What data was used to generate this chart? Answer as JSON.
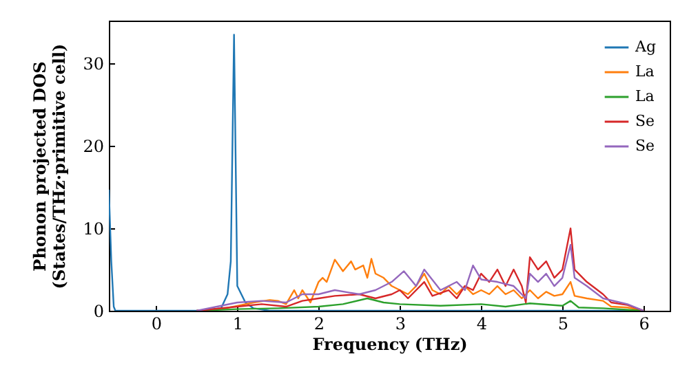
{
  "chart_data": {
    "type": "line",
    "xlabel": "Frequency (THz)",
    "ylabel": "Phonon projected DOS\n(States/THz·primitive cell)",
    "xlim": [
      -0.58,
      6.32
    ],
    "ylim": [
      0,
      35.2
    ],
    "xticks": [
      0,
      1,
      2,
      3,
      4,
      5,
      6
    ],
    "yticks": [
      0,
      10,
      20,
      30
    ],
    "legend": "top right",
    "series": [
      {
        "name": "Ag",
        "color": "#1f77b4",
        "x": [
          -0.58,
          -0.55,
          -0.52,
          -0.5,
          0.5,
          0.8,
          0.88,
          0.92,
          0.96,
          1.0,
          1.05,
          1.1,
          1.2,
          1.4,
          6.0
        ],
        "values": [
          14.7,
          6,
          0.5,
          0,
          0,
          0.3,
          2,
          6,
          33.5,
          3,
          2,
          1,
          0.3,
          0,
          0
        ]
      },
      {
        "name": "La",
        "color": "#ff7f0e",
        "x": [
          0.5,
          0.8,
          1.0,
          1.2,
          1.4,
          1.5,
          1.6,
          1.7,
          1.75,
          1.8,
          1.9,
          2.0,
          2.05,
          2.1,
          2.2,
          2.3,
          2.4,
          2.45,
          2.55,
          2.6,
          2.65,
          2.7,
          2.8,
          2.9,
          3.0,
          3.1,
          3.2,
          3.3,
          3.4,
          3.5,
          3.6,
          3.7,
          3.8,
          3.9,
          4.0,
          4.1,
          4.2,
          4.3,
          4.4,
          4.5,
          4.6,
          4.7,
          4.8,
          4.9,
          5.0,
          5.1,
          5.15,
          5.3,
          5.5,
          5.6,
          5.8,
          6.0
        ],
        "values": [
          0,
          0.2,
          0.6,
          1.0,
          1.3,
          1.2,
          0.8,
          2.5,
          1.5,
          2.5,
          1.0,
          3.5,
          4,
          3.5,
          6.2,
          4.8,
          6.0,
          5.0,
          5.5,
          4.0,
          6.3,
          4.5,
          4.0,
          3.0,
          2.5,
          2.0,
          3.0,
          4.5,
          2.5,
          2.0,
          3.0,
          2.0,
          3.0,
          2.0,
          2.5,
          2.0,
          3.0,
          2.0,
          2.5,
          1.5,
          2.5,
          1.5,
          2.3,
          1.8,
          2.0,
          3.5,
          1.8,
          1.5,
          1.2,
          0.5,
          0.4,
          0
        ]
      },
      {
        "name": "La",
        "color": "#2ca02c",
        "x": [
          0.5,
          1.0,
          1.5,
          2.0,
          2.3,
          2.6,
          2.8,
          3.0,
          3.5,
          4.0,
          4.3,
          4.6,
          5.0,
          5.1,
          5.2,
          5.5,
          6.0
        ],
        "values": [
          0,
          0.2,
          0.3,
          0.5,
          0.8,
          1.5,
          1.0,
          0.8,
          0.6,
          0.8,
          0.5,
          0.9,
          0.6,
          1.2,
          0.4,
          0.3,
          0
        ]
      },
      {
        "name": "Se",
        "color": "#d62728",
        "x": [
          0.5,
          1.0,
          1.3,
          1.6,
          1.8,
          2.0,
          2.2,
          2.5,
          2.7,
          2.9,
          3.0,
          3.1,
          3.3,
          3.4,
          3.6,
          3.7,
          3.8,
          3.9,
          4.0,
          4.1,
          4.2,
          4.3,
          4.4,
          4.5,
          4.55,
          4.6,
          4.7,
          4.8,
          4.9,
          5.0,
          5.1,
          5.15,
          5.3,
          5.5,
          5.6,
          5.8,
          6.0
        ],
        "values": [
          0,
          0.5,
          0.8,
          0.5,
          1.2,
          1.5,
          1.8,
          2.0,
          1.5,
          2.0,
          2.5,
          1.5,
          3.5,
          1.8,
          2.5,
          1.5,
          3.0,
          2.5,
          4.5,
          3.5,
          5.0,
          3.0,
          5.0,
          3.0,
          1.0,
          6.5,
          5.0,
          6.0,
          4.0,
          5.0,
          10.0,
          5.0,
          3.5,
          2.0,
          1.0,
          0.7,
          0
        ]
      },
      {
        "name": "Se",
        "color": "#9467bd",
        "x": [
          0.5,
          1.0,
          1.3,
          1.6,
          1.8,
          2.0,
          2.2,
          2.5,
          2.7,
          2.9,
          3.05,
          3.2,
          3.3,
          3.5,
          3.7,
          3.8,
          3.9,
          4.0,
          4.2,
          4.4,
          4.55,
          4.6,
          4.7,
          4.8,
          4.9,
          5.0,
          5.1,
          5.15,
          5.3,
          5.5,
          5.8,
          6.0
        ],
        "values": [
          0,
          1.0,
          1.2,
          1.0,
          2.0,
          2.0,
          2.5,
          2.0,
          2.5,
          3.5,
          4.8,
          3.0,
          5.0,
          2.5,
          3.5,
          2.5,
          5.5,
          3.8,
          3.5,
          3.0,
          1.5,
          4.5,
          3.5,
          4.5,
          3.0,
          4.0,
          8.0,
          4.0,
          3.0,
          1.5,
          0.8,
          0
        ]
      }
    ]
  }
}
